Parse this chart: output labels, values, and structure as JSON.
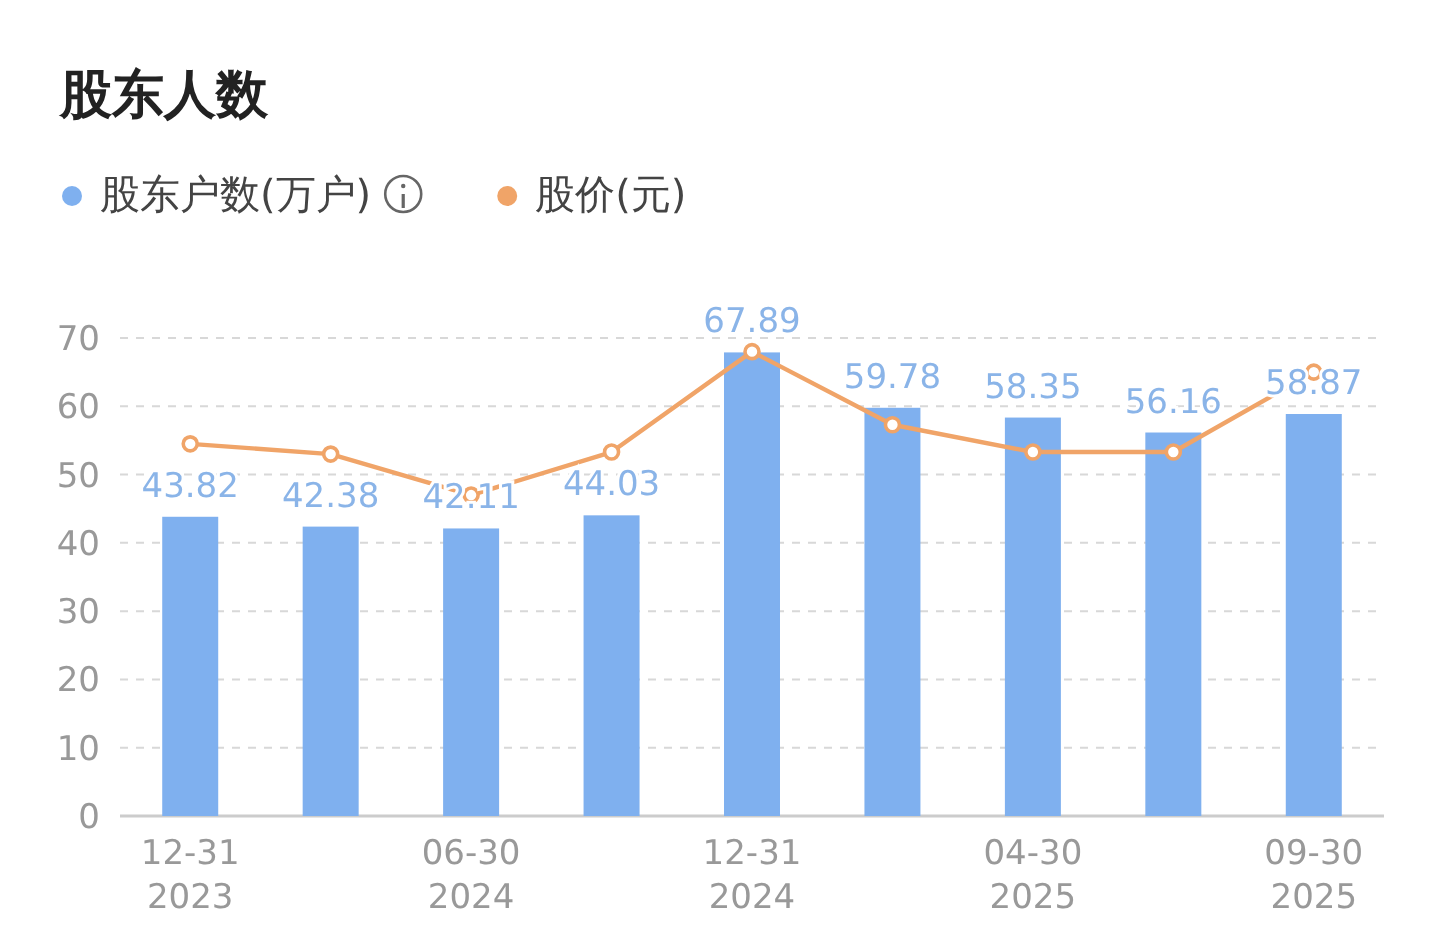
{
  "chart_data": {
    "type": "bar",
    "title": "股东人数",
    "categories": [
      "12-31\n2023",
      null,
      "06-30\n2024",
      null,
      "12-31\n2024",
      null,
      "04-30\n2025",
      null,
      "09-30\n2025"
    ],
    "series": [
      {
        "name": "股东户数(万户)",
        "color": "#7fb0ef",
        "values": [
          43.82,
          42.38,
          42.11,
          44.03,
          67.89,
          59.78,
          58.35,
          56.16,
          58.87
        ],
        "data_labels": true
      },
      {
        "name": "股价(元)",
        "type": "line",
        "color": "#f0a468",
        "marker": "circle",
        "values": [
          54.5,
          53,
          47,
          53.3,
          68,
          57.3,
          53.3,
          53.3,
          65
        ]
      }
    ],
    "ylim": [
      0,
      70
    ],
    "yticks": [
      0,
      10,
      20,
      30,
      40,
      50,
      60,
      70
    ],
    "grid": "y",
    "legend": "top left"
  }
}
